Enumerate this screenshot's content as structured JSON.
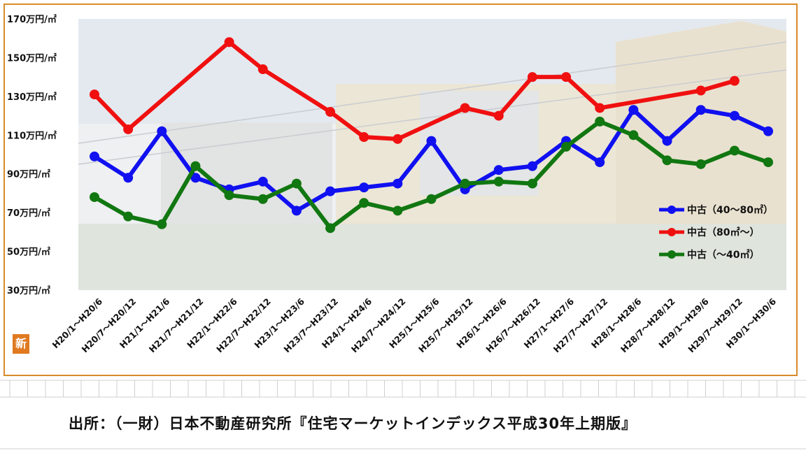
{
  "chart_data": {
    "type": "line",
    "categories": [
      "H20/1～H20/6",
      "H20/7～H20/12",
      "H21/1～H21/6",
      "H21/7～H21/12",
      "H22/1～H22/6",
      "H22/7～H22/12",
      "H23/1～H23/6",
      "H23/7～H23/12",
      "H24/1～H24/6",
      "H24/7～H24/12",
      "H25/1～H25/6",
      "H25/7～H25/12",
      "H26/1～H26/6",
      "H26/7～H26/12",
      "H27/1～H27/6",
      "H27/7～H27/12",
      "H28/1～H28/6",
      "H28/7～H28/12",
      "H29/1～H29/6",
      "H29/7～H29/12",
      "H30/1～H30/6"
    ],
    "yticks": [
      "170万円/㎡",
      "150万円/㎡",
      "130万円/㎡",
      "110万円/㎡",
      "90万円/㎡",
      "70万円/㎡",
      "50万円/㎡",
      "30万円/㎡"
    ],
    "ylim": [
      30,
      170
    ],
    "legend_position": "right",
    "series": [
      {
        "name": "中古（40～80㎡）",
        "color": "#1010f0",
        "values": [
          99,
          88,
          112,
          88,
          82,
          86,
          71,
          81,
          83,
          85,
          107,
          82,
          92,
          94,
          107,
          96,
          123,
          107,
          123,
          120,
          112
        ]
      },
      {
        "name": "中古（80㎡～）",
        "color": "#f01010",
        "values": [
          131,
          113,
          null,
          null,
          158,
          144,
          null,
          122,
          109,
          108,
          null,
          124,
          120,
          140,
          140,
          124,
          null,
          null,
          133,
          138,
          null
        ]
      },
      {
        "name": "中古（～40㎡）",
        "color": "#117711",
        "values": [
          78,
          68,
          64,
          94,
          79,
          77,
          85,
          62,
          75,
          71,
          77,
          85,
          86,
          85,
          104,
          117,
          110,
          97,
          95,
          102,
          96
        ]
      }
    ]
  },
  "logo_text": "新",
  "source_text": "出所：（一財）日本不動産研究所『住宅マーケットインデックス平成30年上期版』"
}
